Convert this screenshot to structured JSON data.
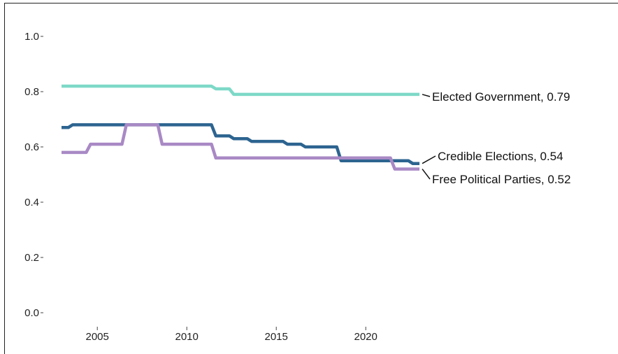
{
  "chart_data": {
    "type": "line",
    "title": "",
    "xlabel": "",
    "ylabel": "",
    "xlim": [
      2002.5,
      2023.5
    ],
    "ylim": [
      0,
      1.0
    ],
    "x_ticks": [
      2005,
      2010,
      2015,
      2020
    ],
    "x_tick_labels": [
      "2005",
      "2010",
      "2015",
      "2020"
    ],
    "y_ticks": [
      0,
      0.2,
      0.4,
      0.6,
      0.8,
      1.0
    ],
    "y_tick_labels": [
      "0.0",
      "0.2",
      "0.4",
      "0.6",
      "0.8",
      "1.0"
    ],
    "grid": false,
    "x": [
      2003,
      2004,
      2005,
      2006,
      2007,
      2008,
      2009,
      2010,
      2011,
      2012,
      2013,
      2014,
      2015,
      2016,
      2017,
      2018,
      2019,
      2020,
      2021,
      2022,
      2023
    ],
    "series": [
      {
        "name": "Elected Government",
        "end_label": "Elected Government, 0.79",
        "color": "#7dd9c7",
        "values": [
          0.82,
          0.82,
          0.82,
          0.82,
          0.82,
          0.82,
          0.82,
          0.82,
          0.82,
          0.81,
          0.79,
          0.79,
          0.79,
          0.79,
          0.79,
          0.79,
          0.79,
          0.79,
          0.79,
          0.79,
          0.79
        ]
      },
      {
        "name": "Credible Elections",
        "end_label": "Credible Elections, 0.54",
        "color": "#2d6490",
        "values": [
          0.67,
          0.68,
          0.68,
          0.68,
          0.68,
          0.68,
          0.68,
          0.68,
          0.68,
          0.64,
          0.63,
          0.62,
          0.62,
          0.61,
          0.6,
          0.6,
          0.55,
          0.55,
          0.55,
          0.55,
          0.54
        ]
      },
      {
        "name": "Free Political Parties",
        "end_label": "Free Political Parties, 0.52",
        "color": "#a989c5",
        "values": [
          0.58,
          0.58,
          0.61,
          0.61,
          0.68,
          0.68,
          0.61,
          0.61,
          0.61,
          0.56,
          0.56,
          0.56,
          0.56,
          0.56,
          0.56,
          0.56,
          0.56,
          0.56,
          0.56,
          0.52,
          0.52
        ]
      }
    ]
  }
}
